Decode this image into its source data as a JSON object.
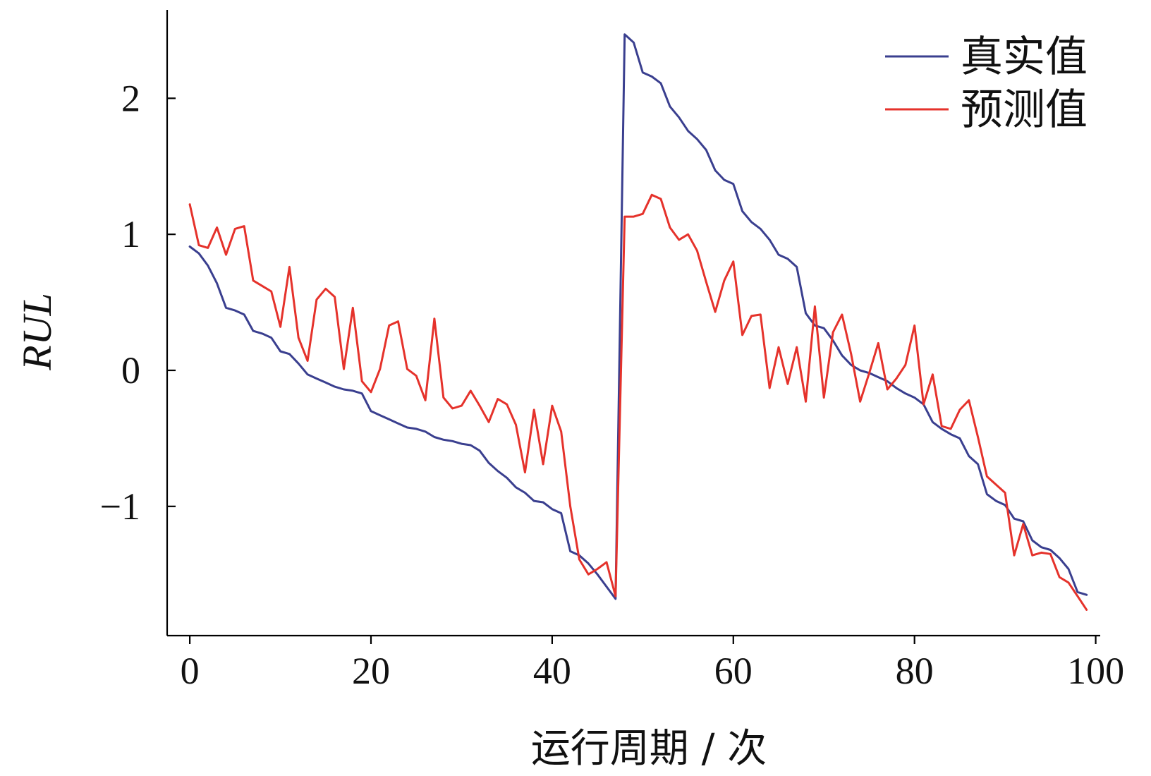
{
  "chart_data": {
    "type": "line",
    "xlabel": "运行周期 / 次",
    "ylabel": "RUL",
    "xlim": [
      -2.5,
      100.5
    ],
    "ylim": [
      -1.95,
      2.65
    ],
    "xticks": [
      0,
      20,
      40,
      60,
      80,
      100
    ],
    "yticks": [
      -1,
      0,
      1,
      2
    ],
    "xtick_labels": [
      "0",
      "20",
      "40",
      "60",
      "80",
      "100"
    ],
    "ytick_labels": [
      "−1",
      "0",
      "1",
      "2"
    ],
    "grid": false,
    "legend_position": "top-right",
    "x": [
      0,
      1,
      2,
      3,
      4,
      5,
      6,
      7,
      8,
      9,
      10,
      11,
      12,
      13,
      14,
      15,
      16,
      17,
      18,
      19,
      20,
      21,
      22,
      23,
      24,
      25,
      26,
      27,
      28,
      29,
      30,
      31,
      32,
      33,
      34,
      35,
      36,
      37,
      38,
      39,
      40,
      41,
      42,
      43,
      44,
      45,
      46,
      47,
      48,
      49,
      50,
      51,
      52,
      53,
      54,
      55,
      56,
      57,
      58,
      59,
      60,
      61,
      62,
      63,
      64,
      65,
      66,
      67,
      68,
      69,
      70,
      71,
      72,
      73,
      74,
      75,
      76,
      77,
      78,
      79,
      80,
      81,
      82,
      83,
      84,
      85,
      86,
      87,
      88,
      89,
      90,
      91,
      92,
      93,
      94,
      95,
      96,
      97,
      98,
      99
    ],
    "series": [
      {
        "name": "真实值",
        "color": "#3a3f8f",
        "values": [
          0.91,
          0.86,
          0.77,
          0.64,
          0.46,
          0.44,
          0.41,
          0.29,
          0.27,
          0.24,
          0.14,
          0.12,
          0.05,
          -0.03,
          -0.06,
          -0.09,
          -0.12,
          -0.14,
          -0.15,
          -0.17,
          -0.3,
          -0.33,
          -0.36,
          -0.39,
          -0.42,
          -0.43,
          -0.45,
          -0.49,
          -0.51,
          -0.52,
          -0.54,
          -0.55,
          -0.59,
          -0.68,
          -0.74,
          -0.79,
          -0.86,
          -0.9,
          -0.96,
          -0.97,
          -1.02,
          -1.05,
          -1.33,
          -1.36,
          -1.42,
          -1.5,
          -1.59,
          -1.68,
          2.47,
          2.41,
          2.19,
          2.16,
          2.11,
          1.94,
          1.86,
          1.76,
          1.7,
          1.62,
          1.47,
          1.4,
          1.37,
          1.17,
          1.09,
          1.04,
          0.96,
          0.85,
          0.82,
          0.76,
          0.42,
          0.33,
          0.31,
          0.22,
          0.11,
          0.04,
          0.0,
          -0.02,
          -0.05,
          -0.08,
          -0.13,
          -0.17,
          -0.2,
          -0.25,
          -0.38,
          -0.43,
          -0.47,
          -0.5,
          -0.63,
          -0.69,
          -0.91,
          -0.96,
          -0.99,
          -1.09,
          -1.11,
          -1.25,
          -1.3,
          -1.32,
          -1.38,
          -1.46,
          -1.63,
          -1.65
        ]
      },
      {
        "name": "预测值",
        "color": "#e5322b",
        "values": [
          1.22,
          0.92,
          0.9,
          1.05,
          0.85,
          1.04,
          1.06,
          0.66,
          0.62,
          0.58,
          0.32,
          0.76,
          0.24,
          0.07,
          0.52,
          0.6,
          0.54,
          0.01,
          0.46,
          -0.08,
          -0.16,
          0.01,
          0.33,
          0.36,
          0.01,
          -0.04,
          -0.22,
          0.38,
          -0.2,
          -0.28,
          -0.26,
          -0.15,
          -0.26,
          -0.38,
          -0.21,
          -0.25,
          -0.4,
          -0.75,
          -0.29,
          -0.69,
          -0.26,
          -0.45,
          -1.0,
          -1.39,
          -1.5,
          -1.46,
          -1.41,
          -1.66,
          1.13,
          1.13,
          1.15,
          1.29,
          1.26,
          1.05,
          0.96,
          1.0,
          0.88,
          0.65,
          0.43,
          0.66,
          0.8,
          0.26,
          0.4,
          0.41,
          -0.13,
          0.17,
          -0.1,
          0.17,
          -0.23,
          0.47,
          -0.2,
          0.28,
          0.41,
          0.12,
          -0.23,
          -0.02,
          0.2,
          -0.14,
          -0.06,
          0.04,
          0.33,
          -0.25,
          -0.03,
          -0.41,
          -0.43,
          -0.29,
          -0.22,
          -0.49,
          -0.78,
          -0.84,
          -0.9,
          -1.36,
          -1.13,
          -1.36,
          -1.34,
          -1.35,
          -1.52,
          -1.56,
          -1.66,
          -1.76
        ]
      }
    ]
  }
}
